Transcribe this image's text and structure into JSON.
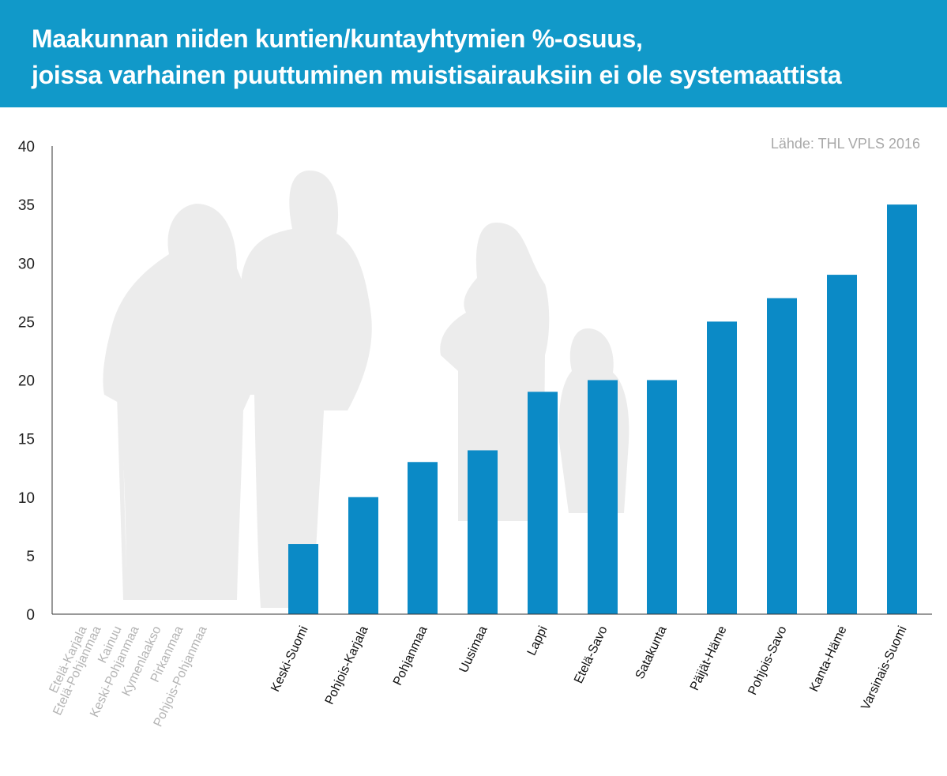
{
  "header": {
    "title_line1": "Maakunnan niiden kuntien/kuntayhtymien %-osuus,",
    "title_line2": "joissa varhainen puuttuminen muistisairauksiin ei ole systemaattista",
    "background": "#1199c9"
  },
  "source": "Lähde: THL VPLS 2016",
  "chart_data": {
    "type": "bar",
    "title": "Maakunnan niiden kuntien/kuntayhtymien %-osuus, joissa varhainen puuttuminen muistisairauksiin ei ole systemaattista",
    "categories": [
      "Etelä-Karjala",
      "Etelä-Pohjanmaa",
      "Kainuu",
      "Keski-Pohjanmaa",
      "Kymenlaakso",
      "Pirkanmaa",
      "Pohjois-Pohjanmaa",
      "Keski-Suomi",
      "Pohjois-Karjala",
      "Pohjanmaa",
      "Uusimaa",
      "Lappi",
      "Etelä-Savo",
      "Satakunta",
      "Päijät-Häme",
      "Pohjois-Savo",
      "Kanta-Häme",
      "Varsinais-Suomi"
    ],
    "values": [
      0,
      0,
      0,
      0,
      0,
      0,
      0,
      6,
      10,
      13,
      14,
      19,
      20,
      20,
      25,
      27,
      29,
      35
    ],
    "ylim": [
      0,
      40
    ],
    "yticks": [
      0,
      5,
      10,
      15,
      20,
      25,
      30,
      35,
      40
    ],
    "xlabel": "",
    "ylabel": "",
    "grid": false,
    "bar_color": "#0b8ac6",
    "zero_label_color": "#b4b4b4",
    "label_color": "#111111"
  }
}
